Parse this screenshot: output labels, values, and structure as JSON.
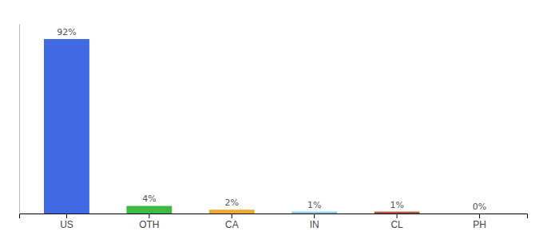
{
  "chart_data": {
    "type": "bar",
    "categories": [
      "US",
      "OTH",
      "CA",
      "IN",
      "CL",
      "PH"
    ],
    "values": [
      92,
      4,
      2,
      1,
      1,
      0
    ],
    "value_labels": [
      "92%",
      "4%",
      "2%",
      "1%",
      "1%",
      "0%"
    ],
    "colors": [
      "#4169e1",
      "#3cb943",
      "#f0a830",
      "#7ecfed",
      "#b5533c",
      "#c0a090"
    ],
    "ylim": [
      0,
      100
    ],
    "grid": false,
    "data_labels": true,
    "tick_labels": "x"
  }
}
